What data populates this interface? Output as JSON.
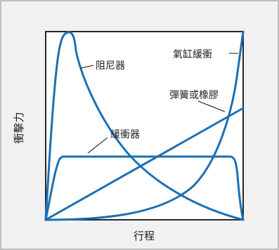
{
  "colors": {
    "background": "#f1f1f1",
    "frame": "#9a9a9a",
    "plot_bg": "#ffffff",
    "plot_border": "#111111",
    "curve": "#1d6fb3",
    "text": "#222222"
  },
  "labels": {
    "xlabel": "行程",
    "ylabel": "衝擊力",
    "damper": "阻尼器",
    "gas_spring": "氣缸緩衝",
    "spring_rubber": "彈簧或橡膠",
    "buffer": "緩衝器"
  }
}
